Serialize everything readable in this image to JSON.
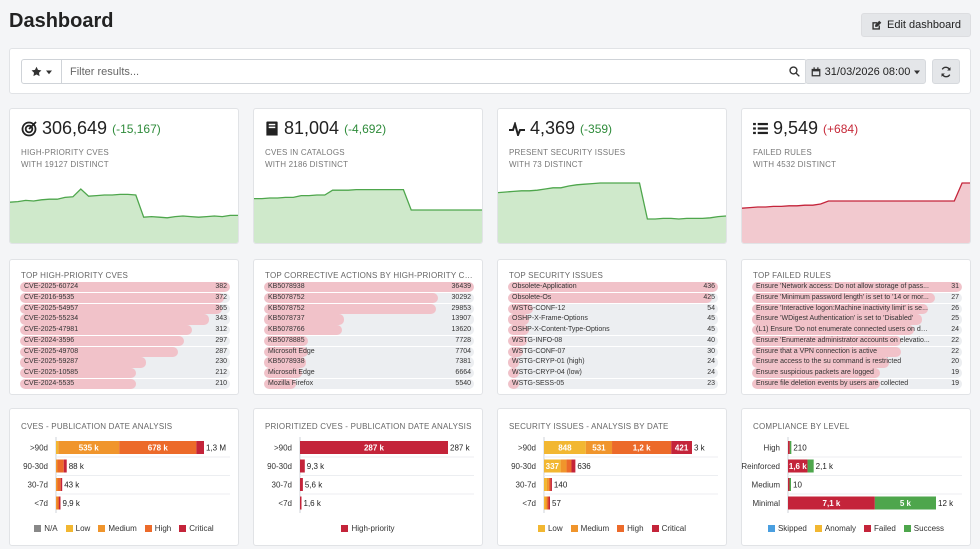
{
  "header": {
    "title": "Dashboard",
    "edit_label": "Edit dashboard"
  },
  "filter": {
    "placeholder": "Filter results...",
    "date_label": "31/03/2026 08:00"
  },
  "colors": {
    "green_fill": "#cfe9cb",
    "green_line": "#4ea64c",
    "red_fill": "#f2c9cf",
    "red_line": "#c4243a",
    "na": "#888888",
    "low": "#f2b731",
    "medium": "#f0952c",
    "high": "#ec6a2a",
    "critical": "#c4243a",
    "skipped": "#4a9fe0",
    "anomaly": "#f2b731",
    "failed": "#c4243a",
    "success": "#4ea64c"
  },
  "stats": [
    {
      "icon": "target-icon",
      "value": "306,649",
      "delta": "(-15,167)",
      "trend": "good",
      "title": "HIGH-PRIORITY CVES",
      "subtitle": "WITH 19127 DISTINCT",
      "spark": [
        0.68,
        0.69,
        0.71,
        0.7,
        0.72,
        0.73,
        0.73,
        0.76,
        0.77,
        0.9,
        0.78,
        0.79,
        0.8,
        0.8,
        0.81,
        0.81,
        0.8,
        0.43,
        0.44,
        0.43,
        0.42,
        0.44,
        0.45,
        0.44,
        0.43,
        0.44,
        0.45,
        0.44,
        0.46,
        0.46
      ]
    },
    {
      "icon": "book-icon",
      "value": "81,004",
      "delta": "(-4,692)",
      "trend": "good",
      "title": "CVES IN CATALOGS",
      "subtitle": "WITH 2186 DISTINCT",
      "spark": [
        0.74,
        0.74,
        0.75,
        0.75,
        0.76,
        0.76,
        0.79,
        0.79,
        0.8,
        0.8,
        0.88,
        0.88,
        0.88,
        0.89,
        0.89,
        0.89,
        0.89,
        0.89,
        0.89,
        0.89,
        0.55,
        0.55,
        0.55,
        0.55,
        0.55,
        0.55,
        0.55,
        0.55,
        0.55,
        0.55
      ]
    },
    {
      "icon": "heartbeat-icon",
      "value": "4,369",
      "delta": "(-359)",
      "trend": "good",
      "title": "PRESENT SECURITY ISSUES",
      "subtitle": "WITH 73 DISTINCT",
      "spark": [
        0.84,
        0.85,
        0.86,
        0.87,
        0.87,
        0.88,
        0.9,
        0.92,
        0.92,
        0.95,
        0.97,
        0.98,
        0.99,
        1.0,
        1.0,
        1.0,
        1.0,
        1.0,
        1.0,
        0.4,
        0.4,
        0.41,
        0.41,
        0.4,
        0.41,
        0.41,
        0.41,
        0.42,
        0.44,
        0.45
      ]
    },
    {
      "icon": "list-icon",
      "value": "9,549",
      "delta": "(+684)",
      "trend": "bad",
      "title": "FAILED RULES",
      "subtitle": "WITH 4532 DISTINCT",
      "spark": [
        0.58,
        0.59,
        0.6,
        0.6,
        0.61,
        0.61,
        0.62,
        0.62,
        0.63,
        0.63,
        0.65,
        0.7,
        0.7,
        0.7,
        0.7,
        0.7,
        0.7,
        0.7,
        0.7,
        0.7,
        0.7,
        0.7,
        0.7,
        0.7,
        0.7,
        0.7,
        0.7,
        0.7,
        1.0,
        1.0
      ]
    }
  ],
  "lists": [
    {
      "title": "TOP HIGH-PRIORITY CVES",
      "items": [
        {
          "label": "CVE-2025-60724",
          "value": "382",
          "fill": 1.0
        },
        {
          "label": "CVE-2016-9535",
          "value": "372",
          "fill": 0.97
        },
        {
          "label": "CVE-2025-54957",
          "value": "365",
          "fill": 0.96
        },
        {
          "label": "CVE-2025-55234",
          "value": "343",
          "fill": 0.9
        },
        {
          "label": "CVE-2025-47981",
          "value": "312",
          "fill": 0.82
        },
        {
          "label": "CVE-2024-3596",
          "value": "297",
          "fill": 0.78
        },
        {
          "label": "CVE-2025-49708",
          "value": "287",
          "fill": 0.75
        },
        {
          "label": "CVE-2025-59287",
          "value": "230",
          "fill": 0.6
        },
        {
          "label": "CVE-2025-10585",
          "value": "212",
          "fill": 0.55
        },
        {
          "label": "CVE-2024-5535",
          "value": "210",
          "fill": 0.55
        }
      ]
    },
    {
      "title": "TOP CORRECTIVE ACTIONS BY HIGH-PRIORITY CVES",
      "items": [
        {
          "label": "KB5078938",
          "value": "36439",
          "fill": 1.0
        },
        {
          "label": "KB5078752",
          "value": "30292",
          "fill": 0.83
        },
        {
          "label": "KB5078752",
          "value": "29853",
          "fill": 0.82
        },
        {
          "label": "KB5078737",
          "value": "13907",
          "fill": 0.38
        },
        {
          "label": "KB5078766",
          "value": "13620",
          "fill": 0.37
        },
        {
          "label": "KB5078885",
          "value": "7728",
          "fill": 0.21
        },
        {
          "label": "Microsoft Edge",
          "value": "7704",
          "fill": 0.21
        },
        {
          "label": "KB5078938",
          "value": "7381",
          "fill": 0.2
        },
        {
          "label": "Microsoft Edge",
          "value": "6664",
          "fill": 0.18
        },
        {
          "label": "Mozilla Firefox",
          "value": "5540",
          "fill": 0.15
        }
      ]
    },
    {
      "title": "TOP SECURITY ISSUES",
      "items": [
        {
          "label": "Obsolete-Application",
          "value": "436",
          "fill": 1.0
        },
        {
          "label": "Obsolete-Os",
          "value": "425",
          "fill": 0.97
        },
        {
          "label": "WSTG-CONF-12",
          "value": "54",
          "fill": 0.12
        },
        {
          "label": "OSHP-X-Frame-Options",
          "value": "45",
          "fill": 0.1
        },
        {
          "label": "OSHP-X-Content-Type-Options",
          "value": "45",
          "fill": 0.1
        },
        {
          "label": "WSTG-INFO-08",
          "value": "40",
          "fill": 0.09
        },
        {
          "label": "WSTG-CONF-07",
          "value": "30",
          "fill": 0.07
        },
        {
          "label": "WSTG-CRYP-01 (high)",
          "value": "24",
          "fill": 0.05
        },
        {
          "label": "WSTG-CRYP-04 (low)",
          "value": "24",
          "fill": 0.05
        },
        {
          "label": "WSTG-SESS-05",
          "value": "23",
          "fill": 0.05
        }
      ]
    },
    {
      "title": "TOP FAILED RULES",
      "items": [
        {
          "label": "Ensure 'Network access: Do not allow storage of pass...",
          "value": "31",
          "fill": 1.0
        },
        {
          "label": "Ensure 'Minimum password length' is set to '14 or mor...",
          "value": "27",
          "fill": 0.87
        },
        {
          "label": "Ensure 'Interactive logon:Machine inactivity limit' is se...",
          "value": "26",
          "fill": 0.84
        },
        {
          "label": "Ensure 'WDigest Authentication' is set to 'Disabled'",
          "value": "25",
          "fill": 0.81
        },
        {
          "label": "(L1) Ensure 'Do not enumerate connected users on do...",
          "value": "24",
          "fill": 0.77
        },
        {
          "label": "Ensure 'Enumerate administrator accounts on elevatio...",
          "value": "22",
          "fill": 0.71
        },
        {
          "label": "Ensure that a VPN connection is active",
          "value": "22",
          "fill": 0.71
        },
        {
          "label": "Ensure access to the su command is restricted",
          "value": "20",
          "fill": 0.65
        },
        {
          "label": "Ensure suspicious packets are logged",
          "value": "19",
          "fill": 0.61
        },
        {
          "label": "Ensure file deletion events by users are collected",
          "value": "19",
          "fill": 0.61
        }
      ]
    }
  ],
  "chart_data": [
    {
      "type": "bar",
      "title": "CVES - PUBLICATION DATE ANALYSIS",
      "orientation": "horizontal",
      "stacked": true,
      "categories": [
        ">90d",
        "90-30d",
        "30-7d",
        "<7d"
      ],
      "series": [
        {
          "name": "N/A",
          "color": "#888888",
          "values": [
            0,
            0,
            0,
            0
          ],
          "labels": [
            "",
            "",
            "",
            ""
          ]
        },
        {
          "name": "Low",
          "color": "#f2b731",
          "values": [
            20000,
            0,
            0,
            0
          ],
          "labels": [
            "",
            "",
            "",
            ""
          ]
        },
        {
          "name": "Medium",
          "color": "#f0952c",
          "values": [
            535000,
            7000,
            3000,
            900
          ],
          "labels": [
            "535 k",
            "",
            "",
            ""
          ]
        },
        {
          "name": "High",
          "color": "#ec6a2a",
          "values": [
            678000,
            55000,
            28000,
            6000
          ],
          "labels": [
            "678 k",
            "",
            "",
            ""
          ]
        },
        {
          "name": "Critical",
          "color": "#c4243a",
          "values": [
            67000,
            26000,
            12000,
            3000
          ],
          "labels": [
            "",
            "",
            "",
            ""
          ]
        }
      ],
      "totals": [
        "1,3 M",
        "88 k",
        "43 k",
        "9,9 k"
      ],
      "xlim": [
        0,
        1300000
      ]
    },
    {
      "type": "bar",
      "title": "PRIORITIZED CVES - PUBLICATION DATE ANALYSIS",
      "orientation": "horizontal",
      "stacked": true,
      "categories": [
        ">90d",
        "90-30d",
        "30-7d",
        "<7d"
      ],
      "series": [
        {
          "name": "High-priority",
          "color": "#c4243a",
          "values": [
            287000,
            9300,
            5600,
            1600
          ],
          "labels": [
            "287 k",
            "",
            "",
            ""
          ]
        }
      ],
      "totals": [
        "287 k",
        "9,3 k",
        "5,6 k",
        "1,6 k"
      ],
      "xlim": [
        0,
        287000
      ]
    },
    {
      "type": "bar",
      "title": "SECURITY ISSUES - ANALYSIS BY DATE",
      "orientation": "horizontal",
      "stacked": true,
      "categories": [
        ">90d",
        "90-30d",
        "30-7d",
        "<7d"
      ],
      "series": [
        {
          "name": "Low",
          "color": "#f2b731",
          "values": [
            848,
            337,
            60,
            10
          ],
          "labels": [
            "848",
            "337",
            "",
            ""
          ]
        },
        {
          "name": "Medium",
          "color": "#f0952c",
          "values": [
            531,
            120,
            40,
            25
          ],
          "labels": [
            "531",
            "",
            "",
            ""
          ]
        },
        {
          "name": "High",
          "color": "#ec6a2a",
          "values": [
            1200,
            100,
            20,
            10
          ],
          "labels": [
            "1,2 k",
            "",
            "",
            ""
          ]
        },
        {
          "name": "Critical",
          "color": "#c4243a",
          "values": [
            421,
            79,
            20,
            12
          ],
          "labels": [
            "421",
            "",
            "",
            ""
          ]
        }
      ],
      "totals": [
        "3 k",
        "636",
        "140",
        "57"
      ],
      "xlim": [
        0,
        3000
      ]
    },
    {
      "type": "bar",
      "title": "COMPLIANCE BY LEVEL",
      "orientation": "horizontal",
      "stacked": true,
      "categories": [
        "High",
        "Reinforced",
        "Medium",
        "Minimal"
      ],
      "series": [
        {
          "name": "Skipped",
          "color": "#4a9fe0",
          "values": [
            0,
            0,
            0,
            0
          ],
          "labels": [
            "",
            "",
            "",
            ""
          ]
        },
        {
          "name": "Anomaly",
          "color": "#f2b731",
          "values": [
            0,
            0,
            0,
            0
          ],
          "labels": [
            "",
            "",
            "",
            ""
          ]
        },
        {
          "name": "Failed",
          "color": "#c4243a",
          "values": [
            150,
            1600,
            6,
            7100
          ],
          "labels": [
            "",
            "1,6 k",
            "",
            "7,1 k"
          ]
        },
        {
          "name": "Success",
          "color": "#4ea64c",
          "values": [
            60,
            500,
            4,
            5000
          ],
          "labels": [
            "",
            "",
            "",
            "5 k"
          ]
        }
      ],
      "totals": [
        "210",
        "2,1 k",
        "10",
        "12 k"
      ],
      "xlim": [
        0,
        12100
      ]
    }
  ]
}
